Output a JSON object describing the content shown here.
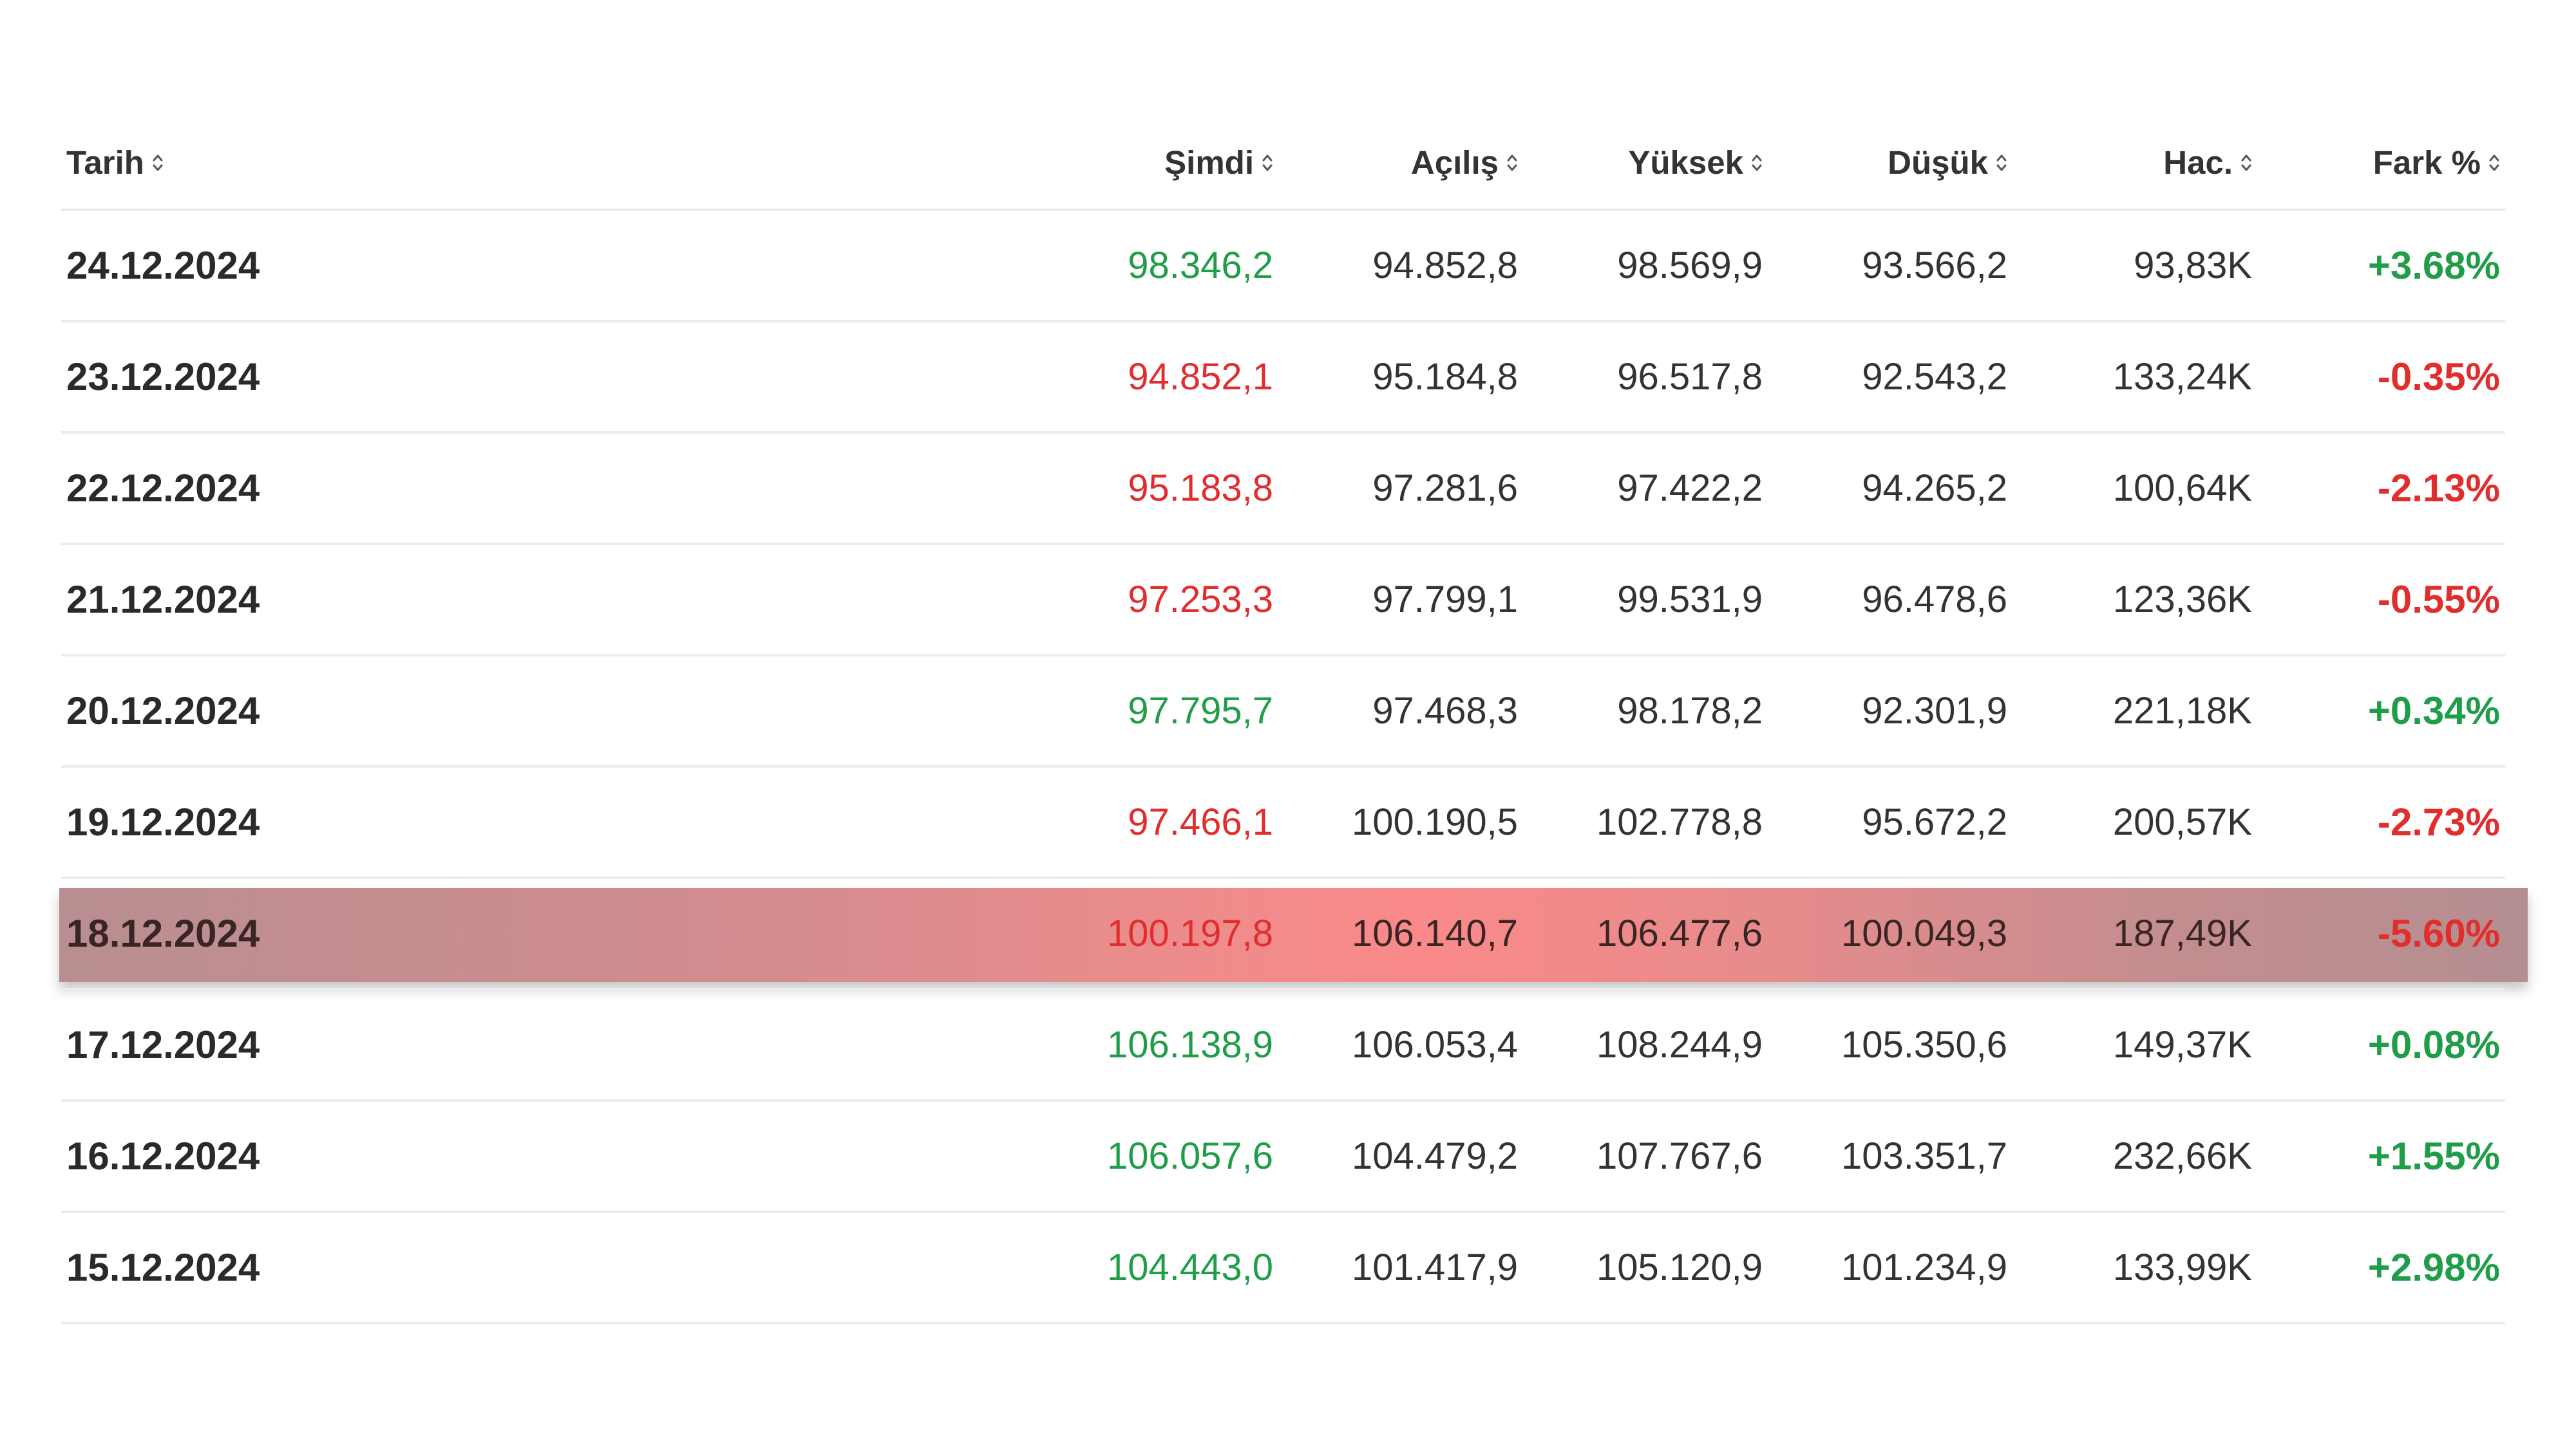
{
  "colors": {
    "positive": "#1f9d48",
    "negative": "#e22d2d",
    "text": "#333333",
    "header_text": "#333333",
    "highlight_mid": "#fa8a89",
    "highlight_edge": "#b48e91"
  },
  "columns": [
    {
      "label": "Tarih",
      "align": "left"
    },
    {
      "label": "Şimdi",
      "align": "right"
    },
    {
      "label": "Açılış",
      "align": "right"
    },
    {
      "label": "Yüksek",
      "align": "right"
    },
    {
      "label": "Düşük",
      "align": "right"
    },
    {
      "label": "Hac.",
      "align": "right"
    },
    {
      "label": "Fark %",
      "align": "right"
    }
  ],
  "rows": [
    {
      "date": "24.12.2024",
      "now": "98.346,2",
      "open": "94.852,8",
      "high": "98.569,9",
      "low": "93.566,2",
      "vol": "93,83K",
      "change": "+3.68%",
      "direction": "up"
    },
    {
      "date": "23.12.2024",
      "now": "94.852,1",
      "open": "95.184,8",
      "high": "96.517,8",
      "low": "92.543,2",
      "vol": "133,24K",
      "change": "-0.35%",
      "direction": "down"
    },
    {
      "date": "22.12.2024",
      "now": "95.183,8",
      "open": "97.281,6",
      "high": "97.422,2",
      "low": "94.265,2",
      "vol": "100,64K",
      "change": "-2.13%",
      "direction": "down"
    },
    {
      "date": "21.12.2024",
      "now": "97.253,3",
      "open": "97.799,1",
      "high": "99.531,9",
      "low": "96.478,6",
      "vol": "123,36K",
      "change": "-0.55%",
      "direction": "down"
    },
    {
      "date": "20.12.2024",
      "now": "97.795,7",
      "open": "97.468,3",
      "high": "98.178,2",
      "low": "92.301,9",
      "vol": "221,18K",
      "change": "+0.34%",
      "direction": "up"
    },
    {
      "date": "19.12.2024",
      "now": "97.466,1",
      "open": "100.190,5",
      "high": "102.778,8",
      "low": "95.672,2",
      "vol": "200,57K",
      "change": "-2.73%",
      "direction": "down"
    },
    {
      "date": "18.12.2024",
      "now": "100.197,8",
      "open": "106.140,7",
      "high": "106.477,6",
      "low": "100.049,3",
      "vol": "187,49K",
      "change": "-5.60%",
      "direction": "down",
      "highlighted": true
    },
    {
      "date": "17.12.2024",
      "now": "106.138,9",
      "open": "106.053,4",
      "high": "108.244,9",
      "low": "105.350,6",
      "vol": "149,37K",
      "change": "+0.08%",
      "direction": "up"
    },
    {
      "date": "16.12.2024",
      "now": "106.057,6",
      "open": "104.479,2",
      "high": "107.767,6",
      "low": "103.351,7",
      "vol": "232,66K",
      "change": "+1.55%",
      "direction": "up"
    },
    {
      "date": "15.12.2024",
      "now": "104.443,0",
      "open": "101.417,9",
      "high": "105.120,9",
      "low": "101.234,9",
      "vol": "133,99K",
      "change": "+2.98%",
      "direction": "up"
    }
  ]
}
